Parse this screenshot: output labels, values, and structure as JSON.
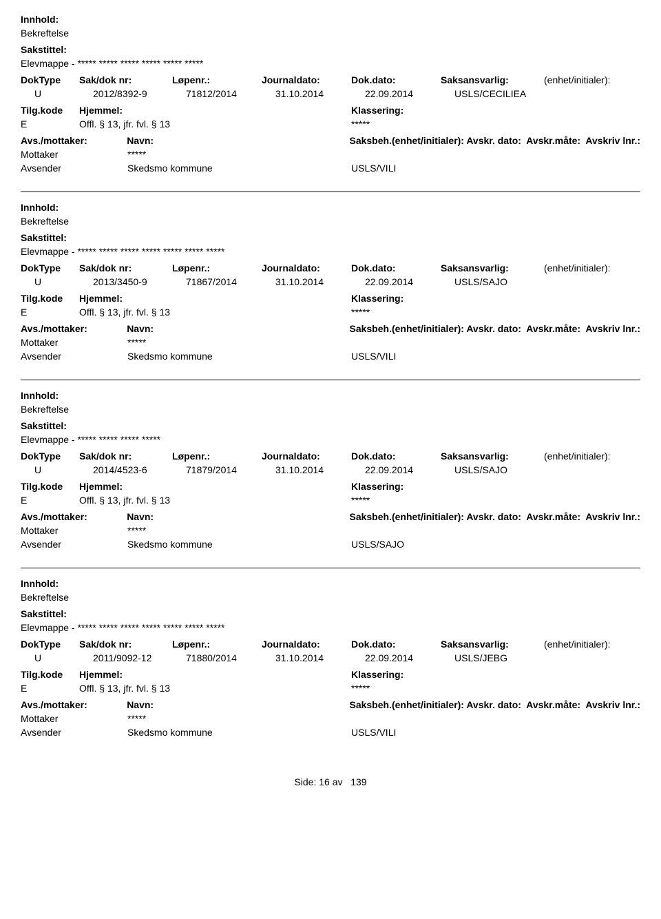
{
  "labels": {
    "innhold": "Innhold:",
    "sakstittel": "Sakstittel:",
    "doktype": "DokType",
    "sakdok": "Sak/dok nr:",
    "lopenr": "Løpenr.:",
    "journaldato": "Journaldato:",
    "dokdato": "Dok.dato:",
    "saksansvarlig": "Saksansvarlig:",
    "enhet": "(enhet/initialer):",
    "tilgkode": "Tilg.kode",
    "hjemmel": "Hjemmel:",
    "klassering": "Klassering:",
    "avsmottaker": "Avs./mottaker:",
    "navn": "Navn:",
    "saksbeh": "Saksbeh.(enhet/initialer):",
    "avskrdato": "Avskr. dato:",
    "avskrmate": "Avskr.måte:",
    "avskrivlnr": "Avskriv lnr.:",
    "mottaker": "Mottaker",
    "avsender": "Avsender"
  },
  "footer": {
    "side_label": "Side:",
    "page": "16",
    "av": "av",
    "total": "139"
  },
  "records": [
    {
      "innhold": "Bekreftelse",
      "sakstittel": "Elevmappe - ***** ***** ***** ***** ***** *****",
      "doktype": "U",
      "sakdok": "2012/8392-9",
      "lopenr": "71812/2014",
      "journaldato": "31.10.2014",
      "dokdato": "22.09.2014",
      "saksansvarlig": "USLS/CECILIEA",
      "enhet": "",
      "tilg": "E",
      "hjemmel": "Offl. § 13, jfr. fvl. § 13",
      "klassering": "*****",
      "mottaker_navn": "*****",
      "avsender_navn": "Skedsmo kommune",
      "avsender_saksbeh": "USLS/VILI"
    },
    {
      "innhold": "Bekreftelse",
      "sakstittel": "Elevmappe - ***** ***** ***** ***** ***** ***** *****",
      "doktype": "U",
      "sakdok": "2013/3450-9",
      "lopenr": "71867/2014",
      "journaldato": "31.10.2014",
      "dokdato": "22.09.2014",
      "saksansvarlig": "USLS/SAJO",
      "enhet": "",
      "tilg": "E",
      "hjemmel": "Offl. § 13, jfr. fvl. § 13",
      "klassering": "*****",
      "mottaker_navn": "*****",
      "avsender_navn": "Skedsmo kommune",
      "avsender_saksbeh": "USLS/VILI"
    },
    {
      "innhold": "Bekreftelse",
      "sakstittel": "Elevmappe - ***** ***** ***** *****",
      "doktype": "U",
      "sakdok": "2014/4523-6",
      "lopenr": "71879/2014",
      "journaldato": "31.10.2014",
      "dokdato": "22.09.2014",
      "saksansvarlig": "USLS/SAJO",
      "enhet": "",
      "tilg": "E",
      "hjemmel": "Offl. § 13, jfr. fvl. § 13",
      "klassering": "*****",
      "mottaker_navn": "*****",
      "avsender_navn": "Skedsmo kommune",
      "avsender_saksbeh": "USLS/SAJO"
    },
    {
      "innhold": "Bekreftelse",
      "sakstittel": "Elevmappe - ***** ***** ***** ***** ***** ***** *****",
      "doktype": "U",
      "sakdok": "2011/9092-12",
      "lopenr": "71880/2014",
      "journaldato": "31.10.2014",
      "dokdato": "22.09.2014",
      "saksansvarlig": "USLS/JEBG",
      "enhet": "",
      "tilg": "E",
      "hjemmel": "Offl. § 13, jfr. fvl. § 13",
      "klassering": "*****",
      "mottaker_navn": "*****",
      "avsender_navn": "Skedsmo kommune",
      "avsender_saksbeh": "USLS/VILI"
    }
  ]
}
